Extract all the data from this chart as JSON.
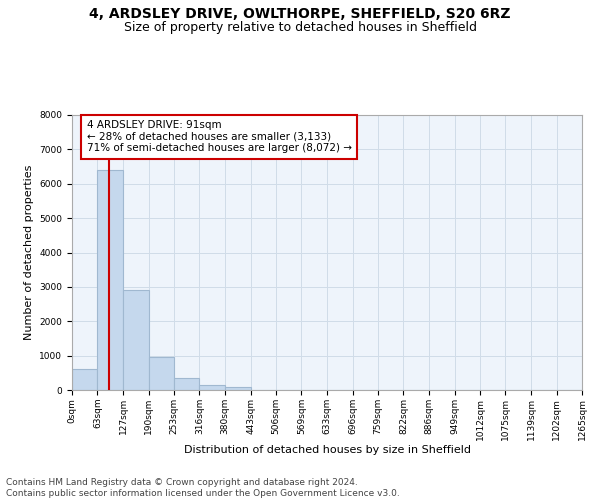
{
  "title": "4, ARDSLEY DRIVE, OWLTHORPE, SHEFFIELD, S20 6RZ",
  "subtitle": "Size of property relative to detached houses in Sheffield",
  "xlabel": "Distribution of detached houses by size in Sheffield",
  "ylabel": "Number of detached properties",
  "bar_values": [
    600,
    6400,
    2900,
    950,
    360,
    150,
    75,
    0,
    0,
    0,
    0,
    0,
    0,
    0,
    0,
    0,
    0,
    0,
    0,
    0
  ],
  "bin_edges": [
    0,
    63,
    127,
    190,
    253,
    316,
    380,
    443,
    506,
    569,
    633,
    696,
    759,
    822,
    886,
    949,
    1012,
    1075,
    1139,
    1202,
    1265
  ],
  "tick_labels": [
    "0sqm",
    "63sqm",
    "127sqm",
    "190sqm",
    "253sqm",
    "316sqm",
    "380sqm",
    "443sqm",
    "506sqm",
    "569sqm",
    "633sqm",
    "696sqm",
    "759sqm",
    "822sqm",
    "886sqm",
    "949sqm",
    "1012sqm",
    "1075sqm",
    "1139sqm",
    "1202sqm",
    "1265sqm"
  ],
  "bar_color": "#c5d8ed",
  "bar_edge_color": "#a0b8d0",
  "bar_linewidth": 0.8,
  "grid_color": "#d0dce8",
  "background_color": "#eef4fb",
  "property_sqm": 91,
  "property_line_color": "#cc0000",
  "annotation_text": "4 ARDSLEY DRIVE: 91sqm\n← 28% of detached houses are smaller (3,133)\n71% of semi-detached houses are larger (8,072) →",
  "annotation_box_color": "#ffffff",
  "annotation_box_edge_color": "#cc0000",
  "ylim": [
    0,
    8000
  ],
  "yticks": [
    0,
    1000,
    2000,
    3000,
    4000,
    5000,
    6000,
    7000,
    8000
  ],
  "footer_text": "Contains HM Land Registry data © Crown copyright and database right 2024.\nContains public sector information licensed under the Open Government Licence v3.0.",
  "title_fontsize": 10,
  "subtitle_fontsize": 9,
  "axis_label_fontsize": 8,
  "tick_fontsize": 6.5,
  "annotation_fontsize": 7.5,
  "footer_fontsize": 6.5
}
